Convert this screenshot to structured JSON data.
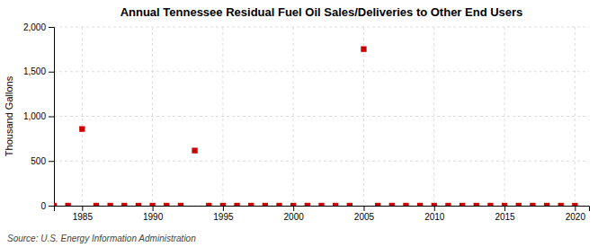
{
  "chart_data": {
    "type": "scatter",
    "title": "Annual Tennessee Residual Fuel Oil Sales/Deliveries to Other End Users",
    "ylabel": "Thousand Gallons",
    "annotations": [
      "Source: U.S. Energy Information Administration"
    ],
    "x": [
      1983,
      1984,
      1985,
      1986,
      1987,
      1988,
      1989,
      1990,
      1991,
      1992,
      1993,
      1994,
      1995,
      1996,
      1997,
      1998,
      1999,
      2000,
      2001,
      2002,
      2003,
      2004,
      2005,
      2006,
      2007,
      2008,
      2009,
      2010,
      2011,
      2012,
      2013,
      2014,
      2015,
      2016,
      2017,
      2018,
      2019,
      2020
    ],
    "values": [
      0,
      0,
      858,
      0,
      0,
      0,
      0,
      0,
      0,
      0,
      617,
      0,
      0,
      0,
      0,
      0,
      0,
      0,
      0,
      0,
      0,
      0,
      1752,
      0,
      0,
      0,
      0,
      0,
      0,
      0,
      0,
      0,
      0,
      0,
      0,
      0,
      0,
      0
    ],
    "color": "#cc0000",
    "marker": "square",
    "xlim": [
      1983,
      2021
    ],
    "ylim": [
      0,
      2000
    ],
    "xticks": [
      1985,
      1990,
      1995,
      2000,
      2005,
      2010,
      2015,
      2020
    ],
    "yticks": [
      0,
      500,
      {
        "value": 1000,
        "label": "1,000"
      },
      {
        "value": 1500,
        "label": "1,500"
      },
      {
        "value": 2000,
        "label": "2,000"
      }
    ],
    "grid": true
  }
}
